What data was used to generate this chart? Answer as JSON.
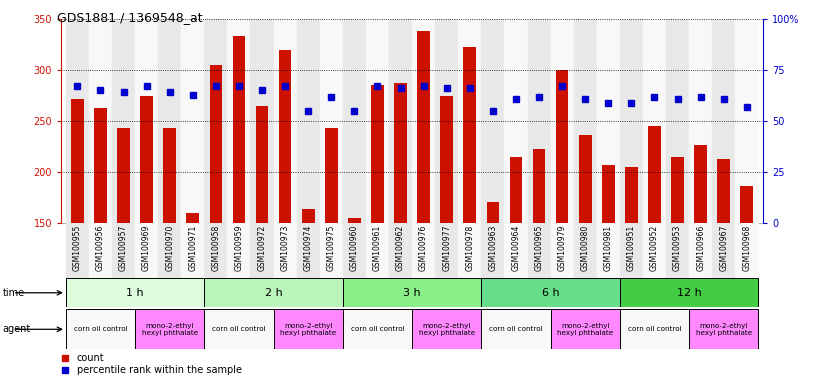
{
  "title": "GDS1881 / 1369548_at",
  "samples": [
    "GSM100955",
    "GSM100956",
    "GSM100957",
    "GSM100969",
    "GSM100970",
    "GSM100971",
    "GSM100958",
    "GSM100959",
    "GSM100972",
    "GSM100973",
    "GSM100974",
    "GSM100975",
    "GSM100960",
    "GSM100961",
    "GSM100962",
    "GSM100976",
    "GSM100977",
    "GSM100978",
    "GSM100963",
    "GSM100964",
    "GSM100965",
    "GSM100979",
    "GSM100980",
    "GSM100981",
    "GSM100951",
    "GSM100952",
    "GSM100953",
    "GSM100966",
    "GSM100967",
    "GSM100968"
  ],
  "counts": [
    272,
    263,
    243,
    275,
    243,
    160,
    305,
    333,
    265,
    320,
    163,
    243,
    155,
    285,
    287,
    338,
    275,
    323,
    170,
    215,
    222,
    300,
    236,
    207,
    205,
    245,
    215,
    226,
    213,
    186
  ],
  "percentiles": [
    67,
    65,
    64,
    67,
    64,
    63,
    67,
    67,
    65,
    67,
    55,
    62,
    55,
    67,
    66,
    67,
    66,
    66,
    55,
    61,
    62,
    67,
    61,
    59,
    59,
    62,
    61,
    62,
    61,
    57
  ],
  "time_groups": [
    {
      "label": "1 h",
      "start": 0,
      "end": 6,
      "color": "#ddfcdd"
    },
    {
      "label": "2 h",
      "start": 6,
      "end": 12,
      "color": "#bbf4bb"
    },
    {
      "label": "3 h",
      "start": 12,
      "end": 18,
      "color": "#88ee88"
    },
    {
      "label": "6 h",
      "start": 18,
      "end": 24,
      "color": "#66dd88"
    },
    {
      "label": "12 h",
      "start": 24,
      "end": 30,
      "color": "#44cc44"
    }
  ],
  "agent_groups": [
    {
      "label": "corn oil control",
      "start": 0,
      "end": 3,
      "color": "#f8f8f8"
    },
    {
      "label": "mono-2-ethyl\nhexyl phthalate",
      "start": 3,
      "end": 6,
      "color": "#ff88ff"
    },
    {
      "label": "corn oil control",
      "start": 6,
      "end": 9,
      "color": "#f8f8f8"
    },
    {
      "label": "mono-2-ethyl\nhexyl phthalate",
      "start": 9,
      "end": 12,
      "color": "#ff88ff"
    },
    {
      "label": "corn oil control",
      "start": 12,
      "end": 15,
      "color": "#f8f8f8"
    },
    {
      "label": "mono-2-ethyl\nhexyl phthalate",
      "start": 15,
      "end": 18,
      "color": "#ff88ff"
    },
    {
      "label": "corn oil control",
      "start": 18,
      "end": 21,
      "color": "#f8f8f8"
    },
    {
      "label": "mono-2-ethyl\nhexyl phthalate",
      "start": 21,
      "end": 24,
      "color": "#ff88ff"
    },
    {
      "label": "corn oil control",
      "start": 24,
      "end": 27,
      "color": "#f8f8f8"
    },
    {
      "label": "mono-2-ethyl\nhexyl phthalate",
      "start": 27,
      "end": 30,
      "color": "#ff88ff"
    }
  ],
  "ylim_left": [
    150,
    350
  ],
  "ylim_right": [
    0,
    100
  ],
  "bar_color": "#cc1100",
  "dot_color": "#0000cc",
  "left_tick_color": "#cc1100",
  "right_tick_color": "#0000cc",
  "col_colors": [
    "#e8e8e8",
    "#f8f8f8"
  ]
}
